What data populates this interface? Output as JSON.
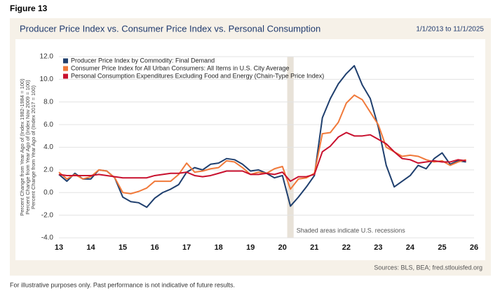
{
  "figure_label": "Figure 13",
  "footnote": "For illustrative purposes only. Past performance is not indicative of future results.",
  "chart_data": {
    "type": "line",
    "title": "Producer Price Index vs. Consumer Price Index vs. Personal Consumption",
    "date_range": "1/1/2013 to 11/1/2025",
    "ylabel": [
      "Percent Change from Year Ago of (Index 1982-1984 = 100)",
      "Percent Change from Year Ago of (Index Nov 2009 = 100)",
      "Percent Change from Year Ago of (Index 2017 = 100)"
    ],
    "annotation": "Shaded areas indicate U.S. recessions",
    "sources": "Sources: BLS, BEA; fred.stlouisfed.org",
    "recession": [
      20.15,
      20.35
    ],
    "grid": true,
    "legend": "top-left",
    "xlim": [
      13,
      26
    ],
    "xticks": [
      13,
      14,
      15,
      16,
      17,
      18,
      19,
      20,
      21,
      22,
      23,
      24,
      25,
      26
    ],
    "ylim": [
      -4,
      12
    ],
    "yticks": [
      {
        "value": -4,
        "label": "-4.0"
      },
      {
        "value": -2,
        "label": "-2.0"
      },
      {
        "value": 0,
        "label": "0.0"
      },
      {
        "value": 2,
        "label": "2.0"
      },
      {
        "value": 4,
        "label": "4.0"
      },
      {
        "value": 6,
        "label": "6.0"
      },
      {
        "value": 8,
        "label": "8.0"
      },
      {
        "value": 10,
        "label": "10.0"
      },
      {
        "value": 12,
        "label": "12.0"
      }
    ],
    "x": [
      13,
      13.25,
      13.5,
      13.75,
      14,
      14.25,
      14.5,
      14.75,
      15,
      15.25,
      15.5,
      15.75,
      16,
      16.25,
      16.5,
      16.75,
      17,
      17.25,
      17.5,
      17.75,
      18,
      18.25,
      18.5,
      18.75,
      19,
      19.25,
      19.5,
      19.75,
      20,
      20.25,
      20.5,
      20.75,
      21,
      21.25,
      21.5,
      21.75,
      22,
      22.25,
      22.5,
      22.75,
      23,
      23.25,
      23.5,
      23.75,
      24,
      24.25,
      24.5,
      24.75,
      25,
      25.25,
      25.5,
      25.75
    ],
    "series": [
      {
        "name": "Producer Price Index by Commodity: Final Demand",
        "color": "#1f3f6e",
        "values": [
          1.6,
          1.0,
          1.7,
          1.2,
          1.2,
          2.0,
          1.9,
          1.3,
          -0.4,
          -0.8,
          -0.9,
          -1.3,
          -0.5,
          0.0,
          0.3,
          0.7,
          1.8,
          2.2,
          2.0,
          2.5,
          2.6,
          3.0,
          2.9,
          2.5,
          1.9,
          2.0,
          1.7,
          1.3,
          1.5,
          -1.2,
          -0.4,
          0.5,
          1.5,
          6.6,
          8.3,
          9.6,
          10.5,
          11.2,
          9.5,
          8.3,
          5.8,
          2.4,
          0.5,
          1.0,
          1.5,
          2.4,
          2.1,
          3.0,
          3.5,
          2.5,
          2.8,
          2.7
        ]
      },
      {
        "name": "Consumer Price Index for All Urban Consumers: All Items in U.S. City Average",
        "color": "#f0793a",
        "values": [
          1.8,
          1.2,
          1.6,
          1.2,
          1.4,
          2.0,
          1.9,
          1.3,
          0.0,
          -0.1,
          0.1,
          0.4,
          1.0,
          1.0,
          1.0,
          1.6,
          2.6,
          1.8,
          1.9,
          2.1,
          2.2,
          2.8,
          2.7,
          2.2,
          1.6,
          1.8,
          1.7,
          2.1,
          2.3,
          0.3,
          1.2,
          1.3,
          1.7,
          5.2,
          5.3,
          6.2,
          7.9,
          8.6,
          8.2,
          7.1,
          6.0,
          4.0,
          3.6,
          3.2,
          3.3,
          3.2,
          2.9,
          2.7,
          2.8,
          2.4,
          2.7,
          2.9
        ]
      },
      {
        "name": "Personal Consumption Expenditures Excluding Food and Energy (Chain-Type Price Index)",
        "color": "#c8102e",
        "values": [
          1.6,
          1.5,
          1.5,
          1.5,
          1.5,
          1.6,
          1.5,
          1.4,
          1.3,
          1.3,
          1.3,
          1.3,
          1.5,
          1.6,
          1.7,
          1.7,
          1.8,
          1.5,
          1.4,
          1.5,
          1.7,
          1.9,
          1.9,
          1.9,
          1.6,
          1.6,
          1.7,
          1.6,
          1.8,
          1.0,
          1.4,
          1.4,
          1.6,
          3.6,
          4.1,
          4.9,
          5.3,
          5.0,
          5.0,
          5.1,
          4.7,
          4.3,
          3.6,
          3.0,
          2.9,
          2.6,
          2.7,
          2.8,
          2.7,
          2.7,
          2.9,
          2.8
        ]
      }
    ]
  }
}
